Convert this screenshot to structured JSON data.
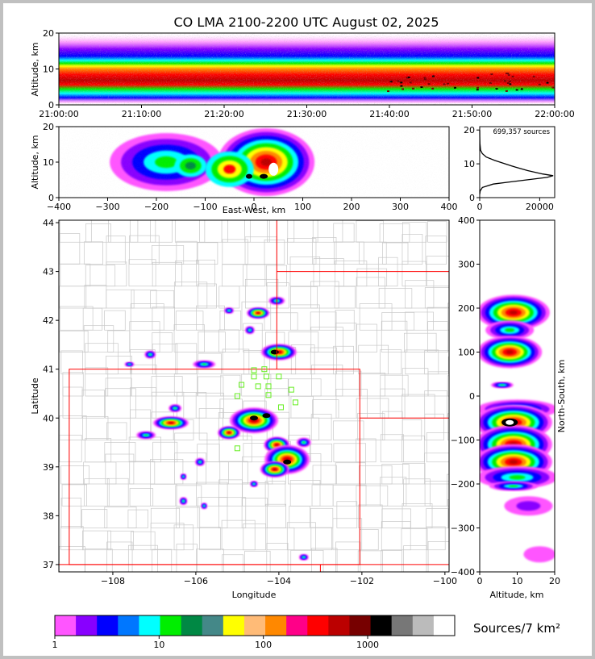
{
  "title": "CO LMA 2100-2200 UTC August 02, 2025",
  "chart_data": [
    {
      "panel": "altitude-time",
      "type": "heatmap",
      "xlabel": "",
      "ylabel": "Altitude, km",
      "xticks": [
        "21:00:00",
        "21:10:00",
        "21:20:00",
        "21:30:00",
        "21:40:00",
        "21:50:00",
        "22:00:00"
      ],
      "yticks": [
        0,
        10,
        20
      ],
      "ylim": [
        0,
        20
      ]
    },
    {
      "panel": "altitude-eastwest",
      "type": "heatmap",
      "xlabel": "East-West, km",
      "ylabel": "Altitude, km",
      "xlim": [
        -400,
        400
      ],
      "ylim": [
        0,
        20
      ],
      "xticks": [
        -400,
        -300,
        -200,
        -100,
        0,
        100,
        200,
        300,
        400
      ],
      "yticks": [
        0,
        10,
        20
      ]
    },
    {
      "panel": "altitude-histogram",
      "type": "line",
      "annotation": "699,357 sources",
      "xlim": [
        0,
        25000
      ],
      "ylim": [
        0,
        21
      ],
      "xticks": [
        0,
        20000
      ],
      "yticks": [
        0,
        10,
        20
      ],
      "profile": [
        {
          "alt": 1,
          "count": 0
        },
        {
          "alt": 2,
          "count": 150
        },
        {
          "alt": 3,
          "count": 900
        },
        {
          "alt": 4,
          "count": 4500
        },
        {
          "alt": 5,
          "count": 13500
        },
        {
          "alt": 6,
          "count": 22500
        },
        {
          "alt": 6.5,
          "count": 24500
        },
        {
          "alt": 7,
          "count": 21000
        },
        {
          "alt": 8,
          "count": 16000
        },
        {
          "alt": 9,
          "count": 12000
        },
        {
          "alt": 10,
          "count": 8500
        },
        {
          "alt": 11,
          "count": 5000
        },
        {
          "alt": 12,
          "count": 2200
        },
        {
          "alt": 13,
          "count": 900
        },
        {
          "alt": 14,
          "count": 300
        },
        {
          "alt": 16,
          "count": 90
        },
        {
          "alt": 18,
          "count": 30
        },
        {
          "alt": 20,
          "count": 0
        }
      ]
    },
    {
      "panel": "plan-view",
      "type": "heatmap",
      "xlabel": "Longitude",
      "ylabel": "Latitude",
      "xlim": [
        -109.3,
        -99.9
      ],
      "ylim": [
        36.85,
        44.05
      ],
      "xticks": [
        -108,
        -106,
        -104,
        -102,
        -100
      ],
      "yticks": [
        37,
        38,
        39,
        40,
        41,
        42,
        43,
        44
      ],
      "stations": [
        {
          "lon": -104.6,
          "lat": 40.85
        },
        {
          "lon": -104.3,
          "lat": 40.85
        },
        {
          "lon": -104.0,
          "lat": 40.85
        },
        {
          "lon": -104.9,
          "lat": 40.68
        },
        {
          "lon": -104.5,
          "lat": 40.65
        },
        {
          "lon": -104.25,
          "lat": 40.65
        },
        {
          "lon": -103.7,
          "lat": 40.58
        },
        {
          "lon": -105.0,
          "lat": 40.45
        },
        {
          "lon": -104.25,
          "lat": 40.47
        },
        {
          "lon": -103.6,
          "lat": 40.32
        },
        {
          "lon": -103.95,
          "lat": 40.22
        },
        {
          "lon": -105.0,
          "lat": 39.38
        },
        {
          "lon": -104.35,
          "lat": 41.0
        },
        {
          "lon": -104.6,
          "lat": 40.98
        }
      ]
    },
    {
      "panel": "northsouth-altitude",
      "type": "heatmap",
      "xlabel": "Altitude, km",
      "ylabel": "North-South, km",
      "xlim": [
        0,
        20
      ],
      "ylim": [
        -400,
        400
      ],
      "xticks": [
        0,
        10,
        20
      ],
      "yticks": [
        -400,
        -300,
        -200,
        -100,
        0,
        100,
        200,
        300,
        400
      ]
    }
  ],
  "colorbar": {
    "label": "Sources/7 km²",
    "ticks": [
      "1",
      "10",
      "100",
      "1000"
    ],
    "colors": [
      "#ff55ff",
      "#8800ff",
      "#0000ff",
      "#0077ff",
      "#00ffff",
      "#00ee00",
      "#008844",
      "#448888",
      "#ffff00",
      "#ffbb77",
      "#ff8800",
      "#ff0088",
      "#ff0000",
      "#bb0000",
      "#770000",
      "#000000",
      "#777777",
      "#bbbbbb",
      "#ffffff"
    ]
  }
}
